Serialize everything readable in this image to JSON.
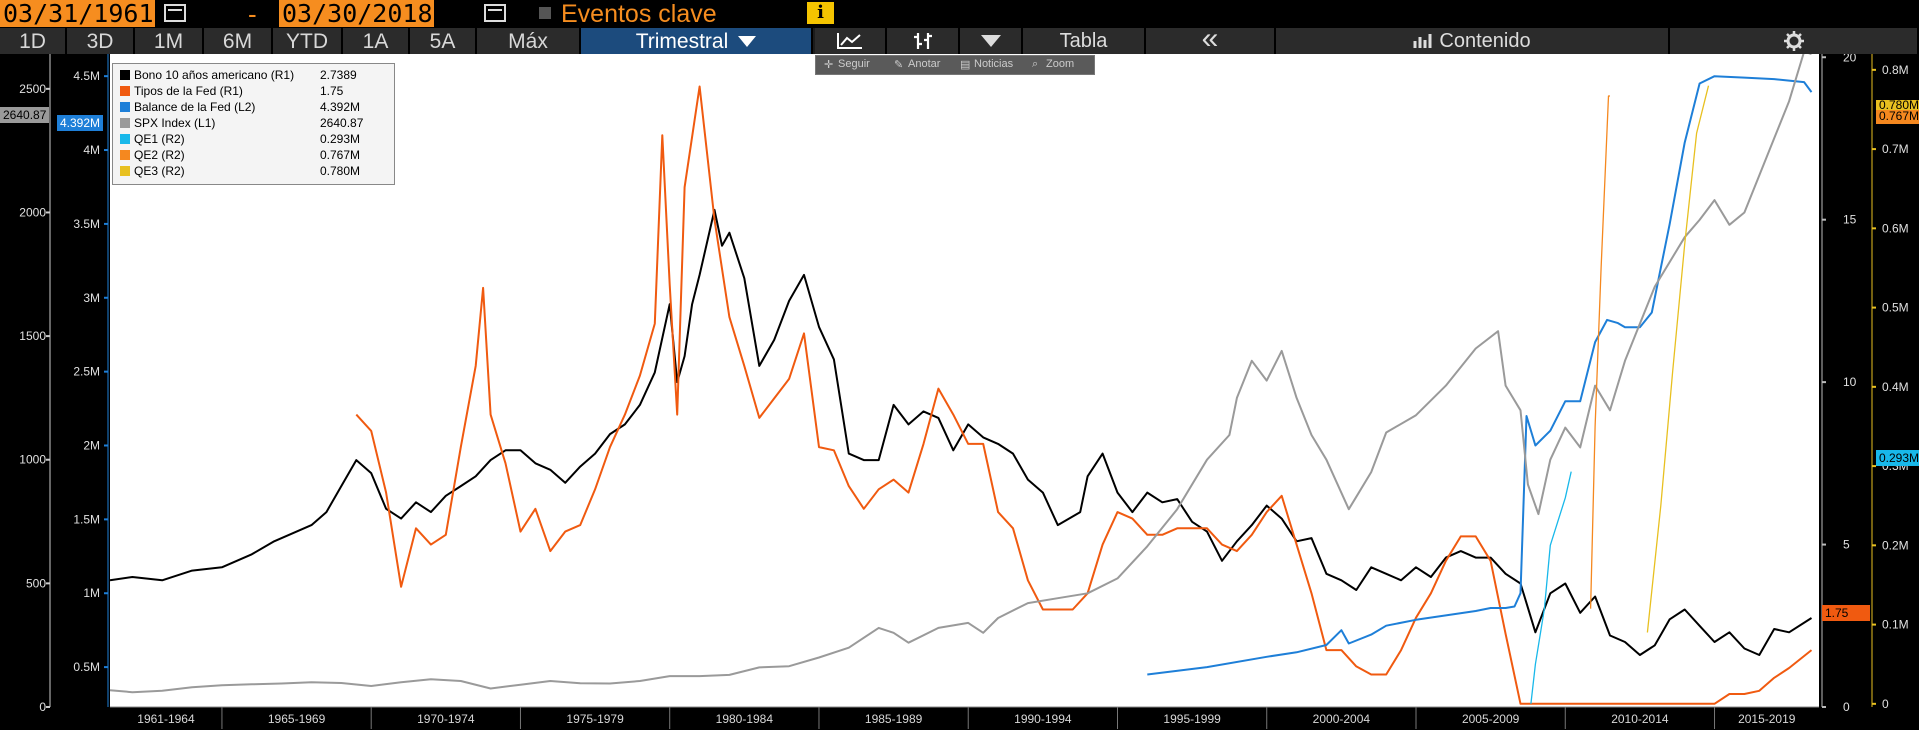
{
  "toolbar": {
    "start_date": "03/31/1961",
    "separator": "-",
    "end_date": "03/30/2018",
    "events_label": "Eventos clave",
    "info_icon": "info-icon",
    "ranges": [
      "1D",
      "3D",
      "1M",
      "6M",
      "YTD",
      "1A",
      "5A",
      "Máx"
    ],
    "frequency": "Trimestral",
    "table_label": "Tabla",
    "contents_label": "Contenido",
    "collapse_symbol": "«",
    "icons": [
      "calendar-icon",
      "line-chart-icon",
      "candlestick-icon",
      "dropdown-icon",
      "bar-chart-icon",
      "gear-icon"
    ]
  },
  "subtoolbar": {
    "follow": "Seguir",
    "annotate": "Anotar",
    "news": "Noticias",
    "zoom": "Zoom"
  },
  "chart_data": {
    "type": "line",
    "x_ticks": [
      "1961-1964",
      "1965-1969",
      "1970-1974",
      "1975-1979",
      "1980-1984",
      "1985-1989",
      "1990-1994",
      "1995-1999",
      "2000-2004",
      "2005-2009",
      "2010-2014",
      "2015-2019"
    ],
    "x_range": [
      1961.25,
      2018.5
    ],
    "axes": {
      "L1": {
        "range": [
          0,
          2640.87
        ],
        "ticks": [
          "0",
          "500",
          "1000",
          "1500",
          "2000",
          "2500"
        ]
      },
      "L2": {
        "range": [
          0.23,
          4.65
        ],
        "ticks": [
          "0.5M",
          "1M",
          "1.5M",
          "2M",
          "2.5M",
          "3M",
          "3.5M",
          "4M",
          "4.5M"
        ]
      },
      "R1": {
        "range": [
          0,
          20.1
        ],
        "ticks": [
          "0",
          "5",
          "10",
          "15",
          "20"
        ]
      },
      "R2": {
        "range": [
          -0.004,
          0.82
        ],
        "ticks": [
          "0",
          "0.1M",
          "0.2M",
          "0.3M",
          "0.4M",
          "0.5M",
          "0.6M",
          "0.7M",
          "0.8M"
        ]
      }
    },
    "series": [
      {
        "name": "Bono 10 años americano (R1)",
        "axis": "R1",
        "color": "#000000",
        "last": "2.7389",
        "x": [
          1961.25,
          1962,
          1963,
          1964,
          1965,
          1966,
          1966.75,
          1967.5,
          1968,
          1968.5,
          1969,
          1969.5,
          1970,
          1970.5,
          1971,
          1971.5,
          1972,
          1972.5,
          1973,
          1973.5,
          1974,
          1974.5,
          1975,
          1975.5,
          1976,
          1976.5,
          1977,
          1977.5,
          1978,
          1978.5,
          1979,
          1979.5,
          1980,
          1980.25,
          1980.5,
          1980.75,
          1981,
          1981.5,
          1981.75,
          1982,
          1982.5,
          1983,
          1983.5,
          1984,
          1984.5,
          1985,
          1985.5,
          1986,
          1986.5,
          1987,
          1987.5,
          1988,
          1988.5,
          1989,
          1989.5,
          1990,
          1990.5,
          1991,
          1991.5,
          1992,
          1992.5,
          1993,
          1993.75,
          1994,
          1994.5,
          1995,
          1995.5,
          1996,
          1996.5,
          1997,
          1997.5,
          1998,
          1998.5,
          1999,
          1999.5,
          2000,
          2000.5,
          2001,
          2001.5,
          2002,
          2002.5,
          2003,
          2003.5,
          2004,
          2004.5,
          2005,
          2005.5,
          2006,
          2006.5,
          2007,
          2007.5,
          2008,
          2008.5,
          2009,
          2009.5,
          2010,
          2010.5,
          2011,
          2011.5,
          2012,
          2012.5,
          2013,
          2013.5,
          2014,
          2014.5,
          2015,
          2015.5,
          2016,
          2016.5,
          2017,
          2017.5,
          2018.25
        ],
        "values": [
          3.9,
          4.0,
          3.9,
          4.2,
          4.3,
          4.7,
          5.1,
          5.4,
          5.6,
          6.0,
          6.8,
          7.6,
          7.2,
          6.1,
          5.8,
          6.3,
          6.0,
          6.5,
          6.8,
          7.1,
          7.6,
          7.9,
          7.9,
          7.5,
          7.3,
          6.9,
          7.4,
          7.8,
          8.4,
          8.7,
          9.3,
          10.3,
          12.4,
          10.0,
          10.8,
          12.4,
          13.3,
          15.3,
          14.2,
          14.6,
          13.2,
          10.5,
          11.3,
          12.5,
          13.3,
          11.7,
          10.7,
          7.8,
          7.6,
          7.6,
          9.3,
          8.7,
          9.1,
          8.9,
          7.9,
          8.7,
          8.3,
          8.1,
          7.8,
          7.0,
          6.6,
          5.6,
          6.0,
          7.1,
          7.8,
          6.6,
          6.0,
          6.6,
          6.3,
          6.4,
          5.7,
          5.4,
          4.5,
          5.1,
          5.6,
          6.2,
          5.8,
          5.1,
          5.2,
          4.1,
          3.9,
          3.6,
          4.3,
          4.1,
          3.9,
          4.3,
          4.0,
          4.6,
          4.8,
          4.6,
          4.6,
          4.1,
          3.8,
          2.3,
          3.5,
          3.8,
          2.9,
          3.4,
          2.2,
          2.0,
          1.6,
          1.9,
          2.7,
          3.0,
          2.5,
          2.0,
          2.3,
          1.8,
          1.6,
          2.4,
          2.3,
          2.74
        ]
      },
      {
        "name": "Tipos de la Fed (R1)",
        "axis": "R1",
        "color": "#f05a10",
        "last": "1.75",
        "x": [
          1969.5,
          1970,
          1970.5,
          1971,
          1971.5,
          1972,
          1972.5,
          1973,
          1973.5,
          1973.75,
          1974,
          1974.5,
          1975,
          1975.5,
          1976,
          1976.5,
          1977,
          1977.5,
          1978,
          1978.5,
          1979,
          1979.5,
          1979.75,
          1980,
          1980.25,
          1980.5,
          1981,
          1981.5,
          1982,
          1982.5,
          1983,
          1983.5,
          1984,
          1984.5,
          1985,
          1985.5,
          1986,
          1986.5,
          1987,
          1987.5,
          1988,
          1988.5,
          1989,
          1989.5,
          1990,
          1990.5,
          1991,
          1991.5,
          1992,
          1992.5,
          1993,
          1993.5,
          1994,
          1994.5,
          1995,
          1995.5,
          1996,
          1996.5,
          1997,
          1997.5,
          1998,
          1998.5,
          1999,
          1999.5,
          2000,
          2000.5,
          2001,
          2001.5,
          2002,
          2002.5,
          2003,
          2003.5,
          2004,
          2004.5,
          2005,
          2005.5,
          2006,
          2006.5,
          2007,
          2007.5,
          2008,
          2008.5,
          2009,
          2010,
          2011,
          2012,
          2013,
          2014,
          2015,
          2015.5,
          2016,
          2016.5,
          2017,
          2017.5,
          2018.25
        ],
        "values": [
          9.0,
          8.5,
          6.6,
          3.7,
          5.5,
          5.0,
          5.3,
          8.0,
          10.5,
          12.9,
          9.0,
          7.5,
          5.4,
          6.1,
          4.8,
          5.4,
          5.6,
          6.7,
          8.0,
          9.0,
          10.2,
          11.8,
          17.6,
          13.0,
          9.0,
          16.0,
          19.1,
          15.0,
          12.0,
          10.5,
          8.9,
          9.5,
          10.1,
          11.5,
          8.0,
          7.9,
          6.8,
          6.1,
          6.7,
          7.0,
          6.6,
          8.1,
          9.8,
          9.0,
          8.1,
          8.1,
          6.0,
          5.5,
          3.9,
          3.0,
          3.0,
          3.0,
          3.5,
          5.0,
          6.0,
          5.8,
          5.3,
          5.3,
          5.5,
          5.5,
          5.5,
          5.0,
          4.8,
          5.3,
          6.0,
          6.5,
          5.0,
          3.5,
          1.75,
          1.75,
          1.25,
          1.0,
          1.0,
          1.75,
          2.75,
          3.5,
          4.5,
          5.25,
          5.25,
          4.5,
          2.25,
          0.1,
          0.1,
          0.1,
          0.1,
          0.1,
          0.1,
          0.1,
          0.1,
          0.4,
          0.4,
          0.5,
          0.9,
          1.2,
          1.75
        ]
      },
      {
        "name": "Balance de la Fed (L2)",
        "axis": "L2",
        "color": "#1e7fd8",
        "last": "4.392M",
        "x": [
          1996.0,
          1998,
          2000,
          2001,
          2002,
          2002.5,
          2002.75,
          2003.5,
          2004,
          2005,
          2006,
          2007,
          2007.5,
          2008.0,
          2008.3,
          2008.5,
          2008.7,
          2009,
          2009.5,
          2010,
          2010.5,
          2011,
          2011.4,
          2011.75,
          2012,
          2012.5,
          2012.9,
          2013.5,
          2014,
          2014.5,
          2015,
          2016,
          2017,
          2017.5,
          2018,
          2018.25
        ],
        "values": [
          0.45,
          0.5,
          0.57,
          0.6,
          0.65,
          0.75,
          0.66,
          0.72,
          0.78,
          0.82,
          0.85,
          0.88,
          0.9,
          0.9,
          0.91,
          1.0,
          2.2,
          2.0,
          2.1,
          2.3,
          2.3,
          2.7,
          2.85,
          2.83,
          2.8,
          2.8,
          2.9,
          3.5,
          4.05,
          4.45,
          4.5,
          4.49,
          4.48,
          4.47,
          4.46,
          4.392
        ]
      },
      {
        "name": "SPX Index (L1)",
        "axis": "L1",
        "color": "#9a9a9a",
        "last": "2640.87",
        "x": [
          1961.25,
          1962,
          1963,
          1964,
          1965,
          1966,
          1967,
          1968,
          1969,
          1970,
          1971,
          1972,
          1973,
          1974,
          1975,
          1976,
          1977,
          1978,
          1979,
          1980,
          1981,
          1982,
          1983,
          1984,
          1985,
          1986,
          1987,
          1987.5,
          1988,
          1989,
          1990,
          1990.5,
          1991,
          1992,
          1993,
          1994,
          1995,
          1996,
          1997,
          1998,
          1998.75,
          1999,
          1999.5,
          2000,
          2000.5,
          2001,
          2001.5,
          2002,
          2002.75,
          2003,
          2003.5,
          2004,
          2005,
          2006,
          2007,
          2007.75,
          2008,
          2008.5,
          2008.75,
          2009.1,
          2009.5,
          2010,
          2010.5,
          2011,
          2011.5,
          2012,
          2013,
          2014,
          2014.5,
          2015,
          2015.5,
          2016,
          2016.5,
          2017,
          2017.5,
          2018,
          2018.25
        ],
        "values": [
          68,
          60,
          66,
          80,
          88,
          92,
          95,
          100,
          97,
          85,
          100,
          112,
          105,
          75,
          90,
          105,
          96,
          95,
          105,
          125,
          125,
          130,
          160,
          165,
          200,
          240,
          320,
          300,
          260,
          320,
          340,
          300,
          360,
          420,
          440,
          460,
          520,
          650,
          800,
          1000,
          1100,
          1250,
          1400,
          1320,
          1440,
          1250,
          1100,
          1000,
          800,
          850,
          950,
          1110,
          1180,
          1300,
          1450,
          1520,
          1300,
          1200,
          900,
          780,
          1000,
          1130,
          1050,
          1300,
          1200,
          1400,
          1700,
          1900,
          1970,
          2050,
          1950,
          2000,
          2150,
          2300,
          2450,
          2650,
          2640.87
        ]
      },
      {
        "name": "QE1 (R2)",
        "axis": "R2",
        "color": "#18b8ea",
        "last": "0.293M",
        "x": [
          2008.85,
          2009.0,
          2009.3,
          2009.5,
          2010.0,
          2010.2
        ],
        "values": [
          0.0,
          0.05,
          0.12,
          0.2,
          0.26,
          0.293
        ]
      },
      {
        "name": "QE2 (R2)",
        "axis": "R2",
        "color": "#f5881f",
        "last": "0.767M",
        "x": [
          2010.85,
          2011.0,
          2011.2,
          2011.45,
          2011.5
        ],
        "values": [
          0.12,
          0.35,
          0.55,
          0.767,
          0.767
        ]
      },
      {
        "name": "QE3 (R2)",
        "axis": "R2",
        "color": "#e8c020",
        "last": "0.780M",
        "x": [
          2012.75,
          2013.2,
          2013.6,
          2014.0,
          2014.4,
          2014.8
        ],
        "values": [
          0.09,
          0.25,
          0.42,
          0.58,
          0.72,
          0.78
        ]
      }
    ]
  }
}
